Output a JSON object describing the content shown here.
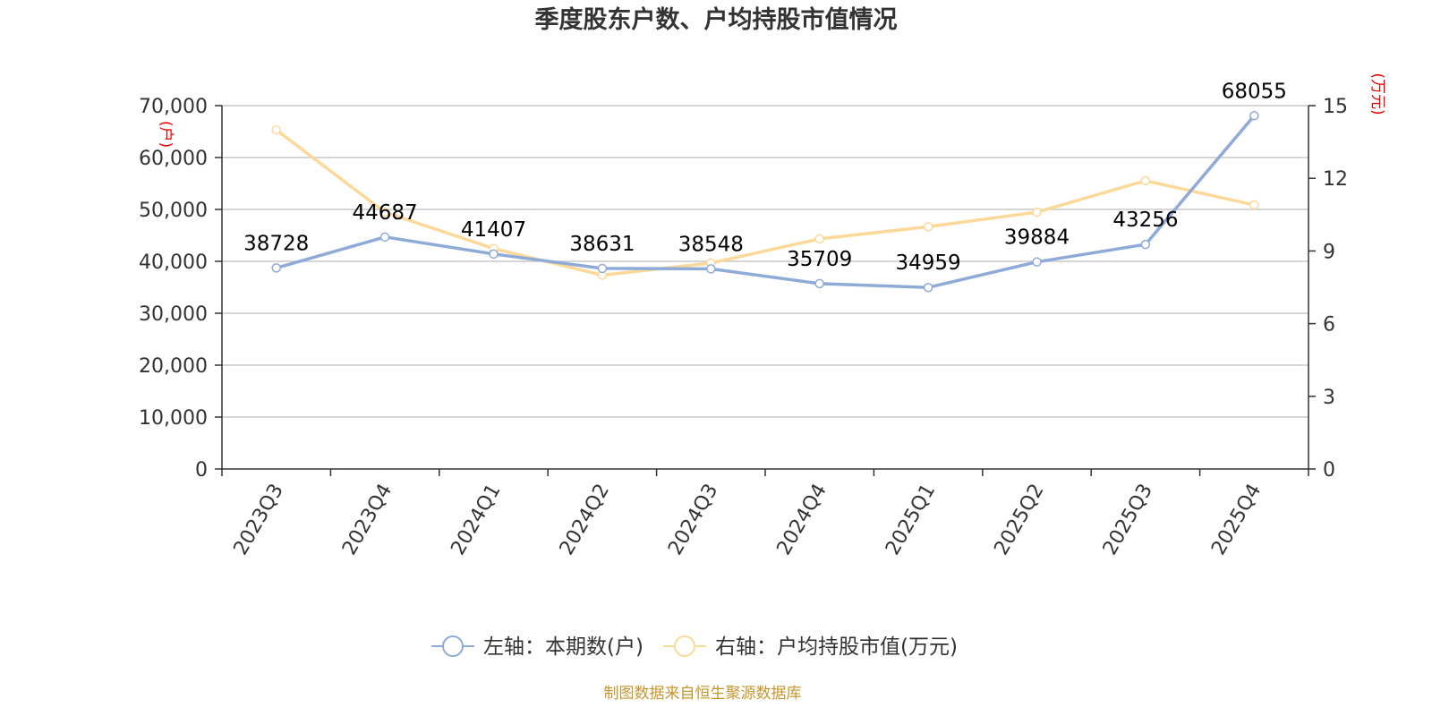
{
  "chart_data": {
    "type": "line",
    "title": "季度股东户数、户均持股市值情况",
    "categories": [
      "2023Q3",
      "2023Q4",
      "2024Q1",
      "2024Q2",
      "2024Q3",
      "2024Q4",
      "2025Q1",
      "2025Q2",
      "2025Q3",
      "2025Q4"
    ],
    "left_axis": {
      "unit": "(户)",
      "range": [
        0,
        70000
      ],
      "ticks": [
        "0",
        "10,000",
        "20,000",
        "30,000",
        "40,000",
        "50,000",
        "60,000",
        "70,000"
      ]
    },
    "right_axis": {
      "unit": "(万元)",
      "range": [
        0,
        15
      ],
      "ticks": [
        "0",
        "3",
        "6",
        "9",
        "12",
        "15"
      ]
    },
    "grid": true,
    "legend_position": "bottom",
    "series": [
      {
        "name": "左轴：本期数(户)",
        "axis": "left",
        "color": "#8eabd8",
        "values": [
          38728,
          44687,
          41407,
          38631,
          38548,
          35709,
          34959,
          39884,
          43256,
          68055
        ],
        "labels": [
          "38728",
          "44687",
          "41407",
          "38631",
          "38548",
          "35709",
          "34959",
          "39884",
          "43256",
          "68055"
        ]
      },
      {
        "name": "右轴：户均持股市值(万元)",
        "axis": "right",
        "color": "#fcd999",
        "values": [
          14.0,
          10.6,
          9.1,
          8.0,
          8.5,
          9.5,
          10.0,
          10.6,
          11.9,
          10.9
        ]
      }
    ],
    "source": "制图数据来自恒生聚源数据库"
  }
}
